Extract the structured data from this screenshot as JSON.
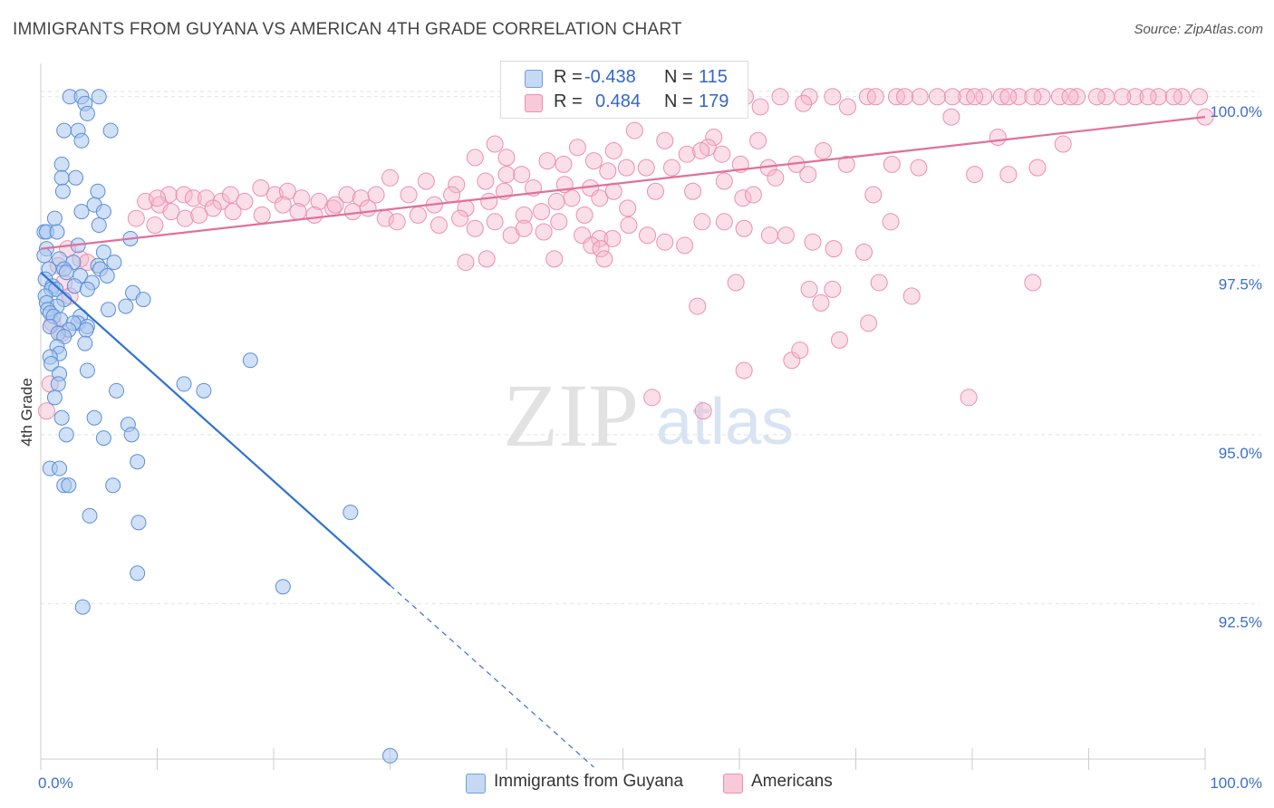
{
  "header": {
    "title": "IMMIGRANTS FROM GUYANA VS AMERICAN 4TH GRADE CORRELATION CHART",
    "source": "Source: ZipAtlas.com"
  },
  "watermark": {
    "zip": "ZIP",
    "atlas": "atlas"
  },
  "legend_stats": {
    "series1": {
      "r_label": "R =",
      "r_value": "-0.438",
      "n_label": "N =",
      "n_value": "115"
    },
    "series2": {
      "r_label": "R =",
      "r_value": "0.484",
      "n_label": "N =",
      "n_value": "179"
    }
  },
  "bottom_legend": {
    "series1": "Immigrants from Guyana",
    "series2": "Americans"
  },
  "colors": {
    "blue_fill": "#a9c7ef",
    "blue_stroke": "#5b8fd8",
    "blue_line": "#2f72d4",
    "pink_fill": "#f6b8cc",
    "pink_stroke": "#ec8fb0",
    "pink_line": "#e0709a",
    "tick_label": "#3d6fc8",
    "grid": "#e3e3e3"
  },
  "chart_data": {
    "type": "scatter",
    "title": "IMMIGRANTS FROM GUYANA VS AMERICAN 4TH GRADE CORRELATION CHART",
    "xlabel": "",
    "ylabel": "4th Grade",
    "xlim": [
      0,
      100
    ],
    "ylim": [
      90.2,
      100.6
    ],
    "x_tick_labels": [
      "0.0%",
      "100.0%"
    ],
    "y_ticks": [
      92.5,
      95.0,
      97.5,
      100.0
    ],
    "y_tick_labels": [
      "92.5%",
      "95.0%",
      "97.5%",
      "100.0%"
    ],
    "grid": "horizontal dashed",
    "legend_placement": "top-center and bottom",
    "series": [
      {
        "name": "Immigrants from Guyana",
        "color": "#a9c7ef",
        "trend": {
          "x": [
            0,
            30,
            47.5
          ],
          "y": [
            97.4,
            92.77,
            90.08
          ],
          "dashed_from_x": 30
        },
        "points": [
          [
            2.5,
            100.0
          ],
          [
            3.5,
            100.0
          ],
          [
            5.0,
            100.0
          ],
          [
            3.8,
            99.9
          ],
          [
            4.0,
            99.75
          ],
          [
            2.0,
            99.5
          ],
          [
            3.2,
            99.5
          ],
          [
            6.0,
            99.5
          ],
          [
            3.5,
            99.35
          ],
          [
            1.8,
            99.0
          ],
          [
            3.0,
            98.8
          ],
          [
            1.8,
            98.8
          ],
          [
            1.9,
            98.6
          ],
          [
            4.9,
            98.6
          ],
          [
            3.5,
            98.3
          ],
          [
            4.6,
            98.4
          ],
          [
            1.2,
            98.2
          ],
          [
            5.4,
            98.3
          ],
          [
            5.0,
            98.1
          ],
          [
            0.3,
            98.0
          ],
          [
            0.5,
            98.0
          ],
          [
            1.4,
            98.0
          ],
          [
            7.7,
            97.9
          ],
          [
            0.5,
            97.75
          ],
          [
            3.2,
            97.8
          ],
          [
            5.4,
            97.7
          ],
          [
            0.3,
            97.65
          ],
          [
            1.6,
            97.6
          ],
          [
            2.8,
            97.55
          ],
          [
            6.3,
            97.55
          ],
          [
            4.9,
            97.5
          ],
          [
            2.0,
            97.45
          ],
          [
            5.1,
            97.45
          ],
          [
            0.7,
            97.45
          ],
          [
            2.2,
            97.4
          ],
          [
            3.4,
            97.35
          ],
          [
            5.7,
            97.35
          ],
          [
            0.4,
            97.3
          ],
          [
            4.4,
            97.25
          ],
          [
            1.0,
            97.2
          ],
          [
            2.9,
            97.2
          ],
          [
            4.0,
            97.15
          ],
          [
            0.9,
            97.15
          ],
          [
            1.3,
            97.15
          ],
          [
            7.9,
            97.1
          ],
          [
            0.4,
            97.05
          ],
          [
            8.8,
            97.0
          ],
          [
            2.0,
            97.0
          ],
          [
            0.5,
            96.95
          ],
          [
            7.3,
            96.9
          ],
          [
            1.4,
            96.9
          ],
          [
            5.8,
            96.85
          ],
          [
            0.6,
            96.85
          ],
          [
            0.8,
            96.8
          ],
          [
            3.4,
            96.75
          ],
          [
            1.1,
            96.75
          ],
          [
            1.7,
            96.7
          ],
          [
            3.2,
            96.65
          ],
          [
            2.8,
            96.65
          ],
          [
            4.0,
            96.6
          ],
          [
            0.8,
            96.6
          ],
          [
            2.4,
            96.55
          ],
          [
            3.9,
            96.55
          ],
          [
            1.5,
            96.5
          ],
          [
            2.0,
            96.45
          ],
          [
            3.8,
            96.35
          ],
          [
            1.4,
            96.3
          ],
          [
            1.6,
            96.2
          ],
          [
            0.8,
            96.15
          ],
          [
            18.0,
            96.1
          ],
          [
            0.9,
            96.05
          ],
          [
            4.0,
            95.95
          ],
          [
            1.6,
            95.9
          ],
          [
            1.5,
            95.75
          ],
          [
            12.3,
            95.75
          ],
          [
            6.5,
            95.65
          ],
          [
            14.0,
            95.65
          ],
          [
            1.2,
            95.55
          ],
          [
            1.8,
            95.25
          ],
          [
            4.6,
            95.25
          ],
          [
            7.5,
            95.15
          ],
          [
            7.8,
            95.0
          ],
          [
            2.2,
            95.0
          ],
          [
            5.4,
            94.95
          ],
          [
            8.3,
            94.6
          ],
          [
            0.8,
            94.5
          ],
          [
            1.6,
            94.5
          ],
          [
            2.0,
            94.25
          ],
          [
            2.4,
            94.25
          ],
          [
            6.2,
            94.25
          ],
          [
            26.6,
            93.85
          ],
          [
            4.2,
            93.8
          ],
          [
            8.4,
            93.7
          ],
          [
            8.3,
            92.95
          ],
          [
            20.8,
            92.75
          ],
          [
            3.6,
            92.45
          ],
          [
            30.0,
            90.25
          ]
        ]
      },
      {
        "name": "Americans",
        "color": "#f6b8cc",
        "trend": {
          "x": [
            0,
            100
          ],
          "y": [
            97.75,
            99.7
          ]
        },
        "points": [
          [
            59.5,
            100.0
          ],
          [
            60.5,
            100.0
          ],
          [
            63.5,
            100.0
          ],
          [
            66.0,
            100.0
          ],
          [
            68.0,
            100.0
          ],
          [
            71.0,
            100.0
          ],
          [
            73.5,
            100.0
          ],
          [
            75.5,
            100.0
          ],
          [
            77.0,
            100.0
          ],
          [
            79.5,
            100.0
          ],
          [
            81.0,
            100.0
          ],
          [
            82.5,
            100.0
          ],
          [
            84.0,
            100.0
          ],
          [
            86.0,
            100.0
          ],
          [
            87.5,
            100.0
          ],
          [
            89.0,
            100.0
          ],
          [
            91.5,
            100.0
          ],
          [
            94.0,
            100.0
          ],
          [
            96.0,
            100.0
          ],
          [
            98.0,
            100.0
          ],
          [
            99.5,
            100.0
          ],
          [
            71.7,
            100.0
          ],
          [
            74.2,
            100.0
          ],
          [
            78.3,
            100.0
          ],
          [
            80.2,
            100.0
          ],
          [
            83.1,
            100.0
          ],
          [
            85.2,
            100.0
          ],
          [
            88.4,
            100.0
          ],
          [
            90.7,
            100.0
          ],
          [
            92.9,
            100.0
          ],
          [
            95.1,
            100.0
          ],
          [
            97.3,
            100.0
          ],
          [
            61.8,
            99.85
          ],
          [
            65.5,
            99.9
          ],
          [
            69.3,
            99.85
          ],
          [
            78.2,
            99.7
          ],
          [
            100.0,
            99.7
          ],
          [
            51.0,
            99.5
          ],
          [
            53.6,
            99.35
          ],
          [
            57.8,
            99.4
          ],
          [
            61.6,
            99.35
          ],
          [
            39.0,
            99.3
          ],
          [
            43.5,
            99.05
          ],
          [
            46.1,
            99.25
          ],
          [
            49.2,
            99.2
          ],
          [
            55.5,
            99.15
          ],
          [
            57.3,
            99.25
          ],
          [
            58.5,
            99.15
          ],
          [
            37.3,
            99.1
          ],
          [
            40.0,
            99.1
          ],
          [
            44.9,
            99.0
          ],
          [
            47.5,
            99.05
          ],
          [
            50.3,
            98.95
          ],
          [
            52.0,
            98.95
          ],
          [
            54.2,
            98.95
          ],
          [
            56.7,
            99.2
          ],
          [
            60.1,
            99.0
          ],
          [
            62.5,
            98.95
          ],
          [
            64.9,
            99.0
          ],
          [
            67.2,
            99.2
          ],
          [
            69.2,
            99.0
          ],
          [
            73.1,
            99.0
          ],
          [
            75.4,
            98.95
          ],
          [
            80.2,
            98.85
          ],
          [
            82.2,
            99.4
          ],
          [
            83.1,
            98.85
          ],
          [
            85.6,
            98.95
          ],
          [
            87.8,
            99.3
          ],
          [
            30.0,
            98.8
          ],
          [
            33.1,
            98.75
          ],
          [
            35.7,
            98.7
          ],
          [
            38.2,
            98.75
          ],
          [
            40.0,
            98.85
          ],
          [
            41.3,
            98.85
          ],
          [
            42.3,
            98.65
          ],
          [
            45.0,
            98.7
          ],
          [
            47.2,
            98.65
          ],
          [
            48.7,
            98.9
          ],
          [
            52.8,
            98.6
          ],
          [
            56.0,
            98.6
          ],
          [
            58.7,
            98.75
          ],
          [
            60.3,
            98.5
          ],
          [
            61.2,
            98.55
          ],
          [
            63.1,
            98.8
          ],
          [
            65.9,
            98.85
          ],
          [
            71.5,
            98.55
          ],
          [
            11.0,
            98.55
          ],
          [
            12.3,
            98.55
          ],
          [
            13.1,
            98.5
          ],
          [
            14.2,
            98.5
          ],
          [
            15.5,
            98.45
          ],
          [
            16.3,
            98.55
          ],
          [
            17.5,
            98.45
          ],
          [
            18.9,
            98.65
          ],
          [
            20.1,
            98.55
          ],
          [
            21.2,
            98.6
          ],
          [
            22.4,
            98.5
          ],
          [
            23.9,
            98.45
          ],
          [
            25.1,
            98.35
          ],
          [
            26.3,
            98.55
          ],
          [
            27.5,
            98.5
          ],
          [
            28.8,
            98.55
          ],
          [
            29.6,
            98.2
          ],
          [
            31.6,
            98.55
          ],
          [
            33.8,
            98.4
          ],
          [
            35.3,
            98.55
          ],
          [
            36.5,
            98.35
          ],
          [
            38.5,
            98.45
          ],
          [
            39.8,
            98.6
          ],
          [
            41.5,
            98.25
          ],
          [
            43.0,
            98.3
          ],
          [
            44.3,
            98.45
          ],
          [
            45.6,
            98.5
          ],
          [
            46.7,
            98.25
          ],
          [
            48.0,
            98.5
          ],
          [
            49.2,
            98.6
          ],
          [
            50.4,
            98.35
          ],
          [
            9.0,
            98.45
          ],
          [
            10.2,
            98.4
          ],
          [
            14.8,
            98.35
          ],
          [
            16.5,
            98.3
          ],
          [
            19.0,
            98.25
          ],
          [
            20.8,
            98.4
          ],
          [
            22.1,
            98.3
          ],
          [
            23.5,
            98.25
          ],
          [
            25.3,
            98.4
          ],
          [
            26.8,
            98.3
          ],
          [
            28.1,
            98.35
          ],
          [
            30.6,
            98.15
          ],
          [
            32.4,
            98.25
          ],
          [
            34.2,
            98.1
          ],
          [
            36.0,
            98.2
          ],
          [
            37.3,
            98.05
          ],
          [
            39.0,
            98.15
          ],
          [
            40.4,
            97.95
          ],
          [
            41.5,
            98.05
          ],
          [
            43.2,
            98.0
          ],
          [
            44.5,
            98.15
          ],
          [
            46.5,
            97.95
          ],
          [
            48.0,
            97.9
          ],
          [
            49.1,
            97.9
          ],
          [
            50.5,
            98.1
          ],
          [
            52.1,
            97.95
          ],
          [
            53.6,
            97.85
          ],
          [
            55.3,
            97.8
          ],
          [
            56.8,
            98.15
          ],
          [
            58.7,
            98.15
          ],
          [
            60.4,
            98.05
          ],
          [
            62.6,
            97.95
          ],
          [
            64.0,
            97.95
          ],
          [
            66.3,
            97.85
          ],
          [
            68.1,
            97.75
          ],
          [
            70.7,
            97.7
          ],
          [
            73.0,
            98.15
          ],
          [
            47.3,
            97.8
          ],
          [
            48.1,
            97.75
          ],
          [
            10.0,
            98.5
          ],
          [
            11.2,
            98.3
          ],
          [
            12.4,
            98.2
          ],
          [
            13.6,
            98.25
          ],
          [
            38.3,
            97.6
          ],
          [
            44.1,
            97.6
          ],
          [
            36.5,
            97.55
          ],
          [
            48.4,
            97.6
          ],
          [
            8.2,
            98.2
          ],
          [
            9.8,
            98.1
          ],
          [
            59.7,
            97.25
          ],
          [
            66.0,
            97.15
          ],
          [
            68.0,
            97.15
          ],
          [
            72.0,
            97.25
          ],
          [
            74.8,
            97.05
          ],
          [
            85.2,
            97.25
          ],
          [
            67.0,
            96.95
          ],
          [
            56.4,
            96.9
          ],
          [
            71.1,
            96.65
          ],
          [
            68.6,
            96.4
          ],
          [
            64.5,
            96.1
          ],
          [
            65.2,
            96.25
          ],
          [
            60.4,
            95.95
          ],
          [
            52.5,
            95.55
          ],
          [
            56.9,
            95.35
          ],
          [
            79.7,
            95.55
          ],
          [
            1.5,
            97.5
          ],
          [
            2.0,
            97.25
          ],
          [
            2.5,
            97.05
          ],
          [
            1.0,
            96.65
          ],
          [
            1.8,
            96.5
          ],
          [
            0.8,
            95.75
          ],
          [
            0.5,
            95.35
          ],
          [
            2.3,
            97.75
          ],
          [
            3.4,
            97.6
          ],
          [
            4.0,
            97.55
          ]
        ]
      }
    ]
  }
}
